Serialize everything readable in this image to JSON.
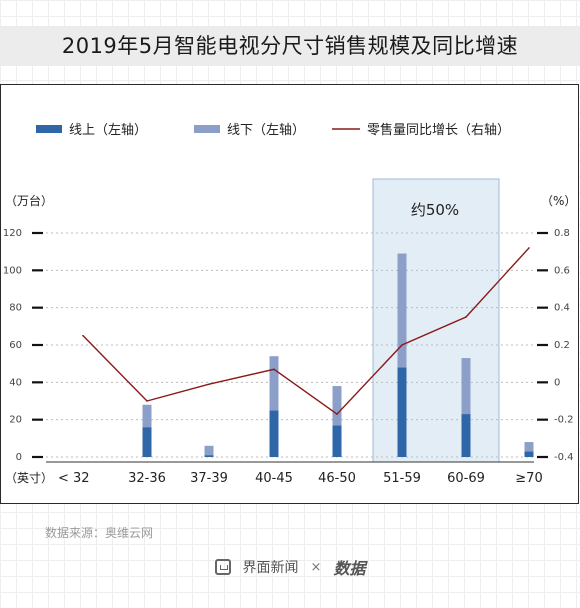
{
  "title": "2019年5月智能电视分尺寸销售规模及同比增速",
  "source": "数据来源：奥维云网",
  "footer": {
    "brand": "界面新闻",
    "separator": "×",
    "partner_logo": "数据"
  },
  "chart_data": {
    "type": "bar",
    "stacked": true,
    "categories": [
      "< 32",
      "32-36",
      "37-39",
      "40-45",
      "46-50",
      "51-59",
      "60-69",
      "≥70"
    ],
    "x_unit_label": "（英寸）",
    "series": [
      {
        "name": "线上（左轴）",
        "axis": "left",
        "type": "bar",
        "values": [
          0,
          16,
          1,
          25,
          17,
          48,
          23,
          3
        ]
      },
      {
        "name": "线下（左轴）",
        "axis": "left",
        "type": "bar",
        "values": [
          0,
          12,
          5,
          29,
          21,
          61,
          30,
          5
        ]
      },
      {
        "name": "零售量同比增长（右轴）",
        "axis": "right",
        "type": "line",
        "values": [
          0.25,
          -0.1,
          -0.01,
          0.07,
          -0.17,
          0.2,
          0.35,
          0.72
        ]
      }
    ],
    "y_left": {
      "unit": "（万台）",
      "ticks": [
        0,
        20,
        40,
        60,
        80,
        100,
        120
      ],
      "range": [
        0,
        120
      ]
    },
    "y_right": {
      "unit": "（%）",
      "ticks": [
        -0.4,
        -0.2,
        0,
        0.2,
        0.4,
        0.6,
        0.8
      ],
      "range": [
        -0.4,
        0.8
      ]
    },
    "highlight": {
      "category": "51-59",
      "label": "约50%"
    },
    "colors": {
      "online": "#2e66a8",
      "offline": "#8c9fc9",
      "line": "#8b1a1a",
      "highlight": "#e3edf6",
      "highlight_border": "#9dbbd8"
    },
    "legend_position": "top",
    "grid": true
  }
}
